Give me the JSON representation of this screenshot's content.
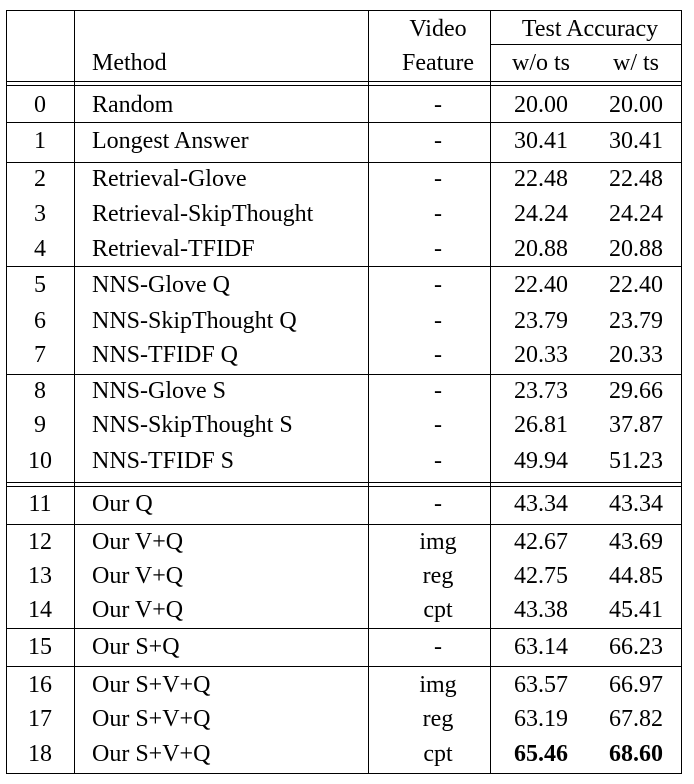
{
  "header": {
    "method": "Method",
    "video_feature_line1": "Video",
    "video_feature_line2": "Feature",
    "test_accuracy": "Test Accuracy",
    "wo_ts": "w/o ts",
    "w_ts": "w/ ts"
  },
  "rows": [
    {
      "idx": "0",
      "method": "Random",
      "feature": "-",
      "wo_ts": "20.00",
      "w_ts": "20.00"
    },
    {
      "idx": "1",
      "method": "Longest Answer",
      "feature": "-",
      "wo_ts": "30.41",
      "w_ts": "30.41"
    },
    {
      "idx": "2",
      "method": "Retrieval-Glove",
      "feature": "-",
      "wo_ts": "22.48",
      "w_ts": "22.48"
    },
    {
      "idx": "3",
      "method": "Retrieval-SkipThought",
      "feature": "-",
      "wo_ts": "24.24",
      "w_ts": "24.24"
    },
    {
      "idx": "4",
      "method": "Retrieval-TFIDF",
      "feature": "-",
      "wo_ts": "20.88",
      "w_ts": "20.88"
    },
    {
      "idx": "5",
      "method": "NNS-Glove Q",
      "feature": "-",
      "wo_ts": "22.40",
      "w_ts": "22.40"
    },
    {
      "idx": "6",
      "method": "NNS-SkipThought Q",
      "feature": "-",
      "wo_ts": "23.79",
      "w_ts": "23.79"
    },
    {
      "idx": "7",
      "method": "NNS-TFIDF Q",
      "feature": "-",
      "wo_ts": "20.33",
      "w_ts": "20.33"
    },
    {
      "idx": "8",
      "method": "NNS-Glove S",
      "feature": "-",
      "wo_ts": "23.73",
      "w_ts": "29.66"
    },
    {
      "idx": "9",
      "method": "NNS-SkipThought S",
      "feature": "-",
      "wo_ts": "26.81",
      "w_ts": "37.87"
    },
    {
      "idx": "10",
      "method": "NNS-TFIDF S",
      "feature": "-",
      "wo_ts": "49.94",
      "w_ts": "51.23"
    },
    {
      "idx": "11",
      "method": "Our Q",
      "feature": "-",
      "wo_ts": "43.34",
      "w_ts": "43.34"
    },
    {
      "idx": "12",
      "method": "Our V+Q",
      "feature": "img",
      "wo_ts": "42.67",
      "w_ts": "43.69"
    },
    {
      "idx": "13",
      "method": "Our V+Q",
      "feature": "reg",
      "wo_ts": "42.75",
      "w_ts": "44.85"
    },
    {
      "idx": "14",
      "method": "Our V+Q",
      "feature": "cpt",
      "wo_ts": "43.38",
      "w_ts": "45.41"
    },
    {
      "idx": "15",
      "method": "Our S+Q",
      "feature": "-",
      "wo_ts": "63.14",
      "w_ts": "66.23"
    },
    {
      "idx": "16",
      "method": "Our S+V+Q",
      "feature": "img",
      "wo_ts": "63.57",
      "w_ts": "66.97"
    },
    {
      "idx": "17",
      "method": "Our S+V+Q",
      "feature": "reg",
      "wo_ts": "63.19",
      "w_ts": "67.82"
    },
    {
      "idx": "18",
      "method": "Our S+V+Q",
      "feature": "cpt",
      "wo_ts": "65.46",
      "w_ts": "68.60",
      "bold": true
    }
  ]
}
